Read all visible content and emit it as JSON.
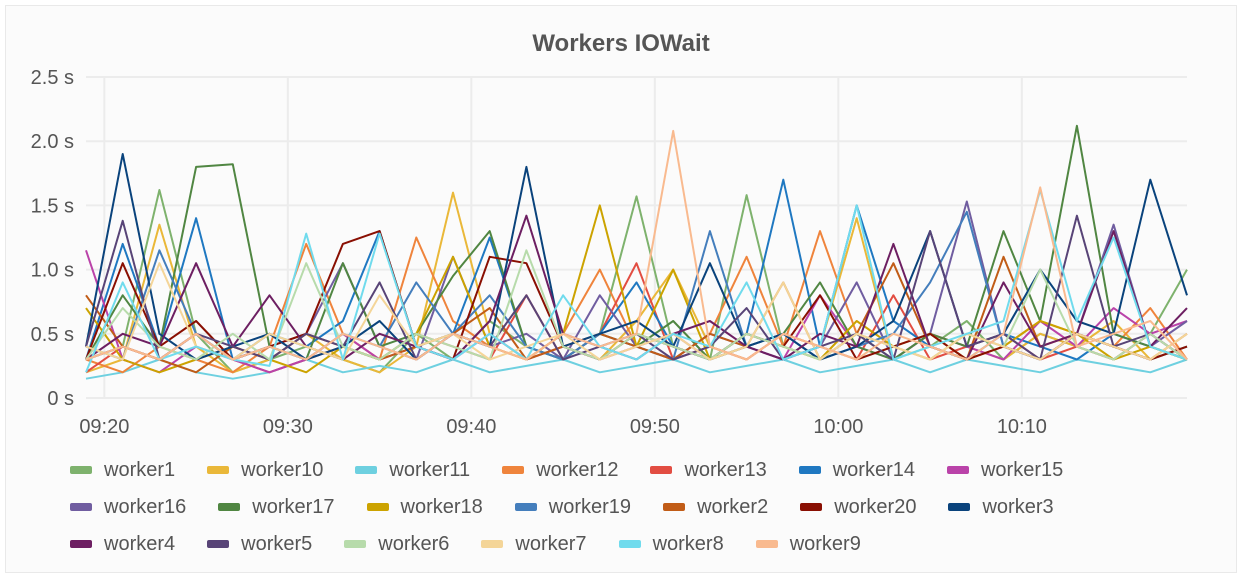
{
  "panel": {
    "title": "Workers IOWait"
  },
  "chart_data": {
    "type": "line",
    "title": "Workers IOWait",
    "xlabel": "",
    "ylabel": "",
    "ylim": [
      0,
      2.5
    ],
    "xlim": [
      "09:19",
      "10:19"
    ],
    "grid": true,
    "legend_position": "bottom",
    "y_ticks": [
      {
        "v": 0,
        "label": "0 s"
      },
      {
        "v": 0.5,
        "label": "0.5 s"
      },
      {
        "v": 1,
        "label": "1.0 s"
      },
      {
        "v": 1.5,
        "label": "1.5 s"
      },
      {
        "v": 2,
        "label": "2.0 s"
      },
      {
        "v": 2.5,
        "label": "2.5 s"
      }
    ],
    "x_ticks": [
      "09:20",
      "09:30",
      "09:40",
      "09:50",
      "10:00",
      "10:10"
    ],
    "x": [
      "09:19",
      "09:21",
      "09:23",
      "09:25",
      "09:27",
      "09:29",
      "09:31",
      "09:33",
      "09:35",
      "09:37",
      "09:39",
      "09:41",
      "09:43",
      "09:45",
      "09:47",
      "09:49",
      "09:51",
      "09:53",
      "09:55",
      "09:57",
      "09:59",
      "10:01",
      "10:03",
      "10:05",
      "10:07",
      "10:09",
      "10:11",
      "10:13",
      "10:15",
      "10:17",
      "10:19"
    ],
    "series": [
      {
        "name": "worker1",
        "color": "#7EB26D",
        "values": [
          0.3,
          0.4,
          1.62,
          0.5,
          0.2,
          0.3,
          0.4,
          0.3,
          0.2,
          0.5,
          0.3,
          0.6,
          0.4,
          0.3,
          0.5,
          1.57,
          0.4,
          0.3,
          1.58,
          0.4,
          0.3,
          0.5,
          0.3,
          0.4,
          0.6,
          0.3,
          0.5,
          0.4,
          0.3,
          0.5,
          1.0
        ]
      },
      {
        "name": "worker10",
        "color": "#EAB839",
        "values": [
          0.2,
          0.3,
          1.35,
          0.4,
          0.2,
          0.3,
          0.5,
          0.3,
          0.2,
          0.4,
          1.6,
          0.5,
          0.3,
          0.4,
          0.3,
          0.6,
          1.0,
          0.4,
          0.3,
          0.5,
          0.4,
          1.4,
          0.3,
          0.5,
          0.4,
          0.3,
          0.5,
          0.4,
          0.6,
          0.3,
          0.4
        ]
      },
      {
        "name": "worker11",
        "color": "#6ED0E0",
        "values": [
          0.15,
          0.2,
          0.3,
          0.2,
          0.15,
          0.2,
          0.3,
          0.2,
          0.25,
          0.2,
          0.3,
          0.2,
          0.25,
          0.3,
          0.2,
          0.25,
          0.3,
          0.2,
          0.25,
          0.3,
          0.2,
          0.25,
          0.3,
          0.2,
          0.3,
          0.25,
          0.2,
          0.3,
          0.25,
          0.2,
          0.3
        ]
      },
      {
        "name": "worker12",
        "color": "#EF843C",
        "values": [
          0.3,
          0.2,
          0.4,
          0.3,
          0.2,
          0.4,
          1.2,
          0.5,
          0.3,
          1.25,
          0.6,
          0.4,
          0.3,
          0.5,
          1.0,
          0.4,
          0.3,
          0.5,
          1.1,
          0.4,
          1.3,
          0.5,
          0.4,
          0.3,
          0.5,
          0.4,
          0.6,
          0.5,
          0.4,
          0.7,
          0.3
        ]
      },
      {
        "name": "worker13",
        "color": "#E24D42",
        "values": [
          0.2,
          0.4,
          0.3,
          0.5,
          0.3,
          0.2,
          0.3,
          0.4,
          0.3,
          0.5,
          0.4,
          0.3,
          0.8,
          0.3,
          0.5,
          1.05,
          0.3,
          0.4,
          0.3,
          0.5,
          0.4,
          0.3,
          0.8,
          0.3,
          0.4,
          0.5,
          0.3,
          0.4,
          0.3,
          0.5,
          0.3
        ]
      },
      {
        "name": "worker14",
        "color": "#1F78C1",
        "values": [
          0.3,
          1.2,
          0.4,
          1.4,
          0.3,
          0.5,
          0.4,
          0.6,
          1.3,
          0.4,
          0.5,
          1.25,
          0.4,
          0.3,
          0.5,
          0.9,
          0.4,
          0.3,
          0.5,
          1.7,
          0.4,
          1.5,
          0.6,
          0.4,
          0.3,
          0.5,
          0.4,
          0.3,
          0.5,
          0.4,
          0.3
        ]
      },
      {
        "name": "worker15",
        "color": "#BA43A9",
        "values": [
          1.15,
          0.3,
          0.2,
          0.4,
          0.3,
          0.2,
          0.3,
          0.5,
          0.3,
          0.4,
          0.3,
          0.5,
          0.3,
          0.4,
          0.3,
          0.4,
          0.5,
          0.3,
          0.4,
          0.3,
          0.8,
          0.4,
          0.3,
          0.5,
          0.4,
          0.3,
          0.6,
          0.4,
          0.7,
          0.5,
          0.6
        ]
      },
      {
        "name": "worker16",
        "color": "#705DA0",
        "values": [
          0.3,
          0.4,
          0.3,
          0.5,
          0.3,
          0.4,
          0.5,
          1.05,
          0.4,
          0.3,
          1.1,
          0.4,
          0.5,
          0.3,
          0.8,
          0.4,
          0.3,
          0.5,
          0.4,
          0.3,
          0.4,
          0.9,
          0.3,
          0.5,
          1.53,
          0.4,
          0.3,
          0.5,
          1.35,
          0.4,
          0.6
        ]
      },
      {
        "name": "worker17",
        "color": "#508642",
        "values": [
          0.3,
          0.8,
          0.4,
          1.8,
          1.82,
          0.4,
          0.3,
          1.05,
          0.4,
          0.5,
          0.95,
          1.3,
          0.4,
          0.3,
          0.5,
          0.4,
          0.6,
          0.3,
          0.4,
          0.5,
          0.9,
          0.4,
          0.3,
          0.5,
          0.4,
          1.3,
          0.6,
          2.12,
          0.5,
          0.4,
          0.3
        ]
      },
      {
        "name": "worker18",
        "color": "#CCA300",
        "values": [
          0.7,
          0.3,
          0.2,
          0.3,
          0.4,
          0.3,
          0.2,
          0.4,
          0.3,
          0.5,
          1.1,
          0.4,
          0.3,
          0.5,
          1.5,
          0.4,
          1.0,
          0.3,
          0.5,
          0.4,
          0.3,
          0.6,
          0.4,
          0.5,
          0.3,
          0.4,
          0.6,
          0.5,
          0.3,
          0.4,
          0.3
        ]
      },
      {
        "name": "worker19",
        "color": "#447EBC",
        "values": [
          0.4,
          0.3,
          1.15,
          0.5,
          0.3,
          0.4,
          0.3,
          0.5,
          0.4,
          0.9,
          0.5,
          0.8,
          0.4,
          0.3,
          0.5,
          0.4,
          0.3,
          1.3,
          0.4,
          0.5,
          0.3,
          0.4,
          0.5,
          0.9,
          1.45,
          0.4,
          0.3,
          0.5,
          0.4,
          0.3,
          0.4
        ]
      },
      {
        "name": "worker2",
        "color": "#C15C17",
        "values": [
          0.8,
          0.4,
          0.3,
          0.2,
          0.4,
          0.3,
          0.5,
          0.4,
          0.3,
          0.4,
          0.5,
          0.7,
          0.3,
          0.4,
          0.5,
          0.4,
          0.3,
          0.5,
          0.4,
          0.9,
          0.3,
          0.5,
          1.05,
          0.4,
          0.3,
          1.1,
          0.4,
          0.5,
          0.4,
          0.3,
          0.5
        ]
      },
      {
        "name": "worker20",
        "color": "#890F02",
        "values": [
          0.3,
          1.05,
          0.4,
          0.6,
          0.3,
          0.4,
          0.5,
          1.2,
          1.3,
          0.4,
          0.3,
          1.1,
          1.05,
          0.4,
          0.3,
          0.5,
          0.4,
          0.3,
          0.5,
          0.4,
          0.8,
          0.3,
          0.4,
          0.5,
          0.3,
          0.4,
          0.3,
          0.5,
          0.4,
          0.3,
          0.4
        ]
      },
      {
        "name": "worker3",
        "color": "#0A437C",
        "values": [
          0.4,
          1.9,
          0.5,
          0.3,
          0.4,
          0.5,
          0.3,
          0.4,
          0.6,
          0.3,
          0.5,
          0.4,
          1.8,
          0.4,
          0.5,
          0.6,
          0.4,
          1.05,
          0.4,
          0.5,
          0.3,
          0.4,
          0.6,
          1.3,
          0.4,
          0.5,
          1.0,
          0.6,
          0.5,
          1.7,
          0.8
        ]
      },
      {
        "name": "worker4",
        "color": "#6D1F62",
        "values": [
          0.3,
          0.5,
          0.4,
          1.05,
          0.4,
          0.8,
          0.4,
          0.3,
          0.5,
          0.4,
          0.3,
          0.6,
          1.42,
          0.5,
          0.4,
          0.3,
          0.5,
          0.6,
          0.4,
          0.3,
          0.5,
          0.4,
          1.2,
          0.4,
          0.3,
          0.9,
          0.4,
          0.5,
          1.3,
          0.4,
          0.7
        ]
      },
      {
        "name": "worker5",
        "color": "#584477",
        "values": [
          0.4,
          1.38,
          0.3,
          0.5,
          0.4,
          0.3,
          0.5,
          0.4,
          0.9,
          0.3,
          0.5,
          0.4,
          0.8,
          0.3,
          0.4,
          0.5,
          0.3,
          0.4,
          0.7,
          0.3,
          0.4,
          0.5,
          0.3,
          1.3,
          0.4,
          0.5,
          0.3,
          1.42,
          0.4,
          0.5,
          0.3
        ]
      },
      {
        "name": "worker6",
        "color": "#B7DBAB",
        "values": [
          0.3,
          0.7,
          0.4,
          0.3,
          0.5,
          0.3,
          1.05,
          0.4,
          0.3,
          0.5,
          0.4,
          0.3,
          1.15,
          0.4,
          0.3,
          0.5,
          0.4,
          0.3,
          0.5,
          0.4,
          0.3,
          0.5,
          0.4,
          0.3,
          0.5,
          0.4,
          1.0,
          0.4,
          0.3,
          0.5,
          0.3
        ]
      },
      {
        "name": "worker7",
        "color": "#F4D598",
        "values": [
          0.4,
          0.3,
          1.05,
          0.4,
          0.3,
          0.5,
          0.4,
          0.3,
          0.8,
          0.4,
          0.5,
          0.3,
          0.4,
          0.5,
          0.3,
          0.4,
          0.5,
          0.3,
          0.4,
          0.9,
          0.3,
          0.5,
          0.4,
          0.3,
          0.5,
          0.4,
          0.3,
          0.5,
          0.4,
          0.3,
          0.5
        ]
      },
      {
        "name": "worker8",
        "color": "#70DBED",
        "values": [
          0.2,
          0.9,
          0.3,
          0.4,
          0.3,
          0.25,
          1.28,
          0.3,
          1.28,
          0.4,
          0.3,
          0.5,
          0.3,
          0.8,
          0.4,
          0.3,
          0.5,
          0.4,
          0.9,
          0.3,
          0.4,
          1.5,
          0.3,
          0.4,
          0.5,
          0.6,
          1.62,
          0.6,
          1.25,
          0.4,
          0.3
        ]
      },
      {
        "name": "worker9",
        "color": "#F9BA8F",
        "values": [
          0.3,
          0.4,
          0.3,
          0.5,
          0.3,
          0.4,
          0.3,
          0.5,
          0.4,
          0.3,
          0.5,
          0.4,
          0.3,
          0.5,
          0.4,
          0.5,
          2.08,
          0.4,
          0.3,
          0.5,
          0.4,
          0.3,
          0.5,
          0.4,
          0.3,
          0.5,
          1.64,
          0.4,
          0.5,
          0.6,
          0.3
        ]
      }
    ]
  }
}
